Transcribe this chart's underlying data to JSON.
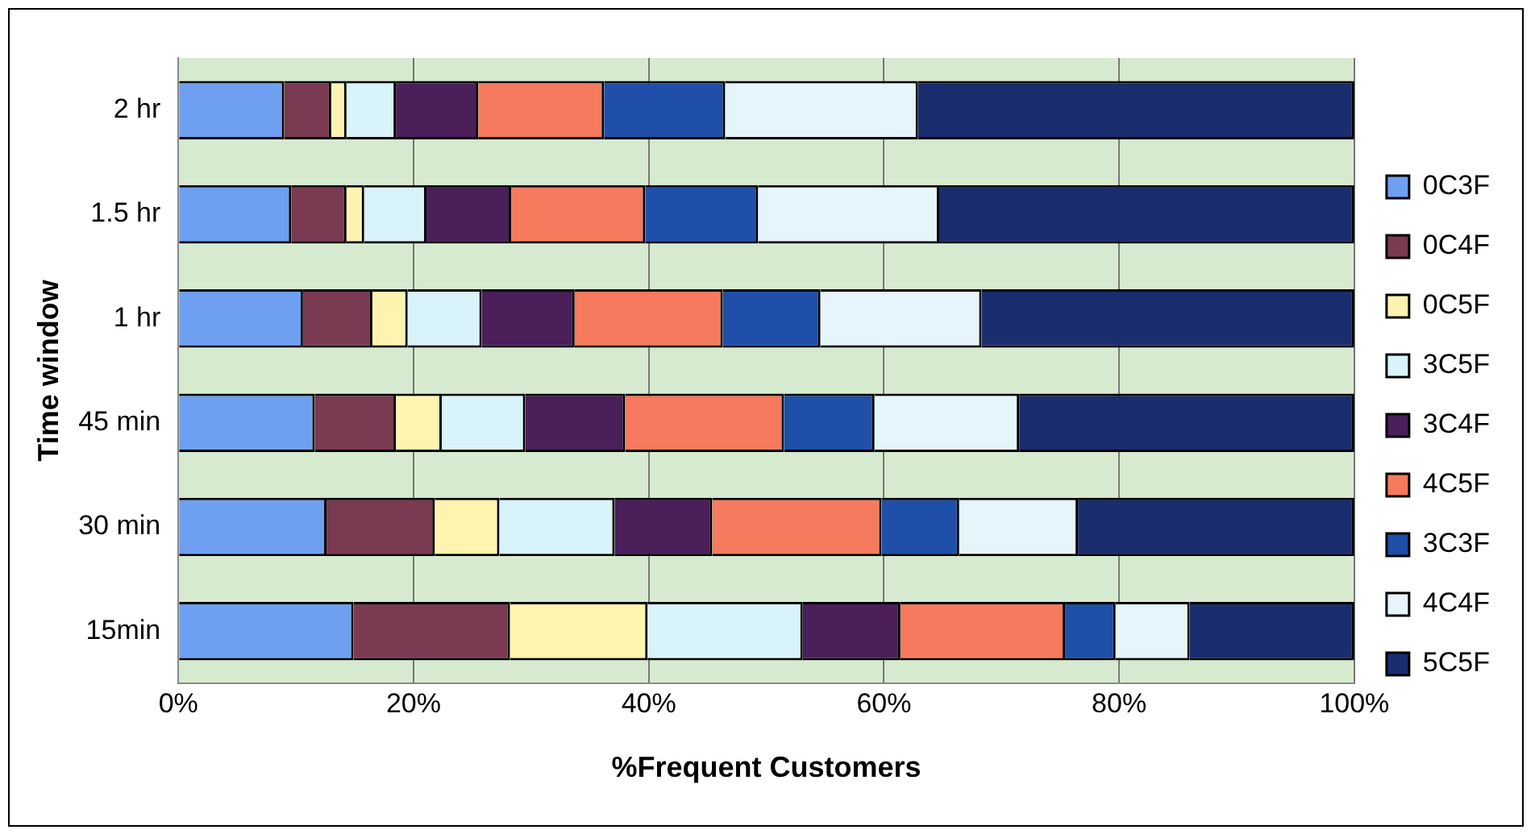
{
  "chart_data": {
    "type": "bar",
    "orientation": "horizontal",
    "stacked": true,
    "xlabel": "%Frequent Customers",
    "ylabel": "Time window",
    "categories": [
      "2 hr",
      "1.5 hr",
      "1 hr",
      "45 min",
      "30 min",
      "15min"
    ],
    "series": [
      {
        "name": "0C3F",
        "color": "#6f9ff0",
        "values": [
          9,
          9.6,
          10.6,
          11.6,
          12.6,
          14.9
        ]
      },
      {
        "name": "0C4F",
        "color": "#7a3a52",
        "values": [
          4,
          4.7,
          5.9,
          6.9,
          9.2,
          13.3
        ]
      },
      {
        "name": "0C5F",
        "color": "#fff3b0",
        "values": [
          1.3,
          1.5,
          3,
          3.9,
          5.5,
          11.7
        ]
      },
      {
        "name": "3C5F",
        "color": "#d9f3fa",
        "values": [
          4.2,
          5.3,
          6.3,
          7.1,
          9.8,
          13.2
        ]
      },
      {
        "name": "3C4F",
        "color": "#4a1f5a",
        "values": [
          7,
          7.2,
          7.9,
          8.5,
          8.3,
          8.3
        ]
      },
      {
        "name": "4C5F",
        "color": "#f57a5e",
        "values": [
          10.7,
          11.4,
          12.6,
          13.5,
          14.4,
          14
        ]
      },
      {
        "name": "3C3F",
        "color": "#1f4fa8",
        "values": [
          10.3,
          9.6,
          8.3,
          7.7,
          6.6,
          4.3
        ]
      },
      {
        "name": "4C4F",
        "color": "#e6f4fb",
        "values": [
          16.4,
          15.4,
          13.7,
          12.3,
          10.1,
          6.3
        ]
      },
      {
        "name": "5C5F",
        "color": "#1a2d6e",
        "values": [
          37.1,
          35.3,
          31.7,
          28.5,
          23.5,
          14
        ]
      }
    ],
    "xlim": [
      0,
      100
    ],
    "xticks": [
      {
        "value": 0,
        "label": "0%"
      },
      {
        "value": 20,
        "label": "20%"
      },
      {
        "value": 40,
        "label": "40%"
      },
      {
        "value": 60,
        "label": "60%"
      },
      {
        "value": 80,
        "label": "80%"
      },
      {
        "value": 100,
        "label": "100%"
      }
    ],
    "grid": "x",
    "legend": "right"
  }
}
